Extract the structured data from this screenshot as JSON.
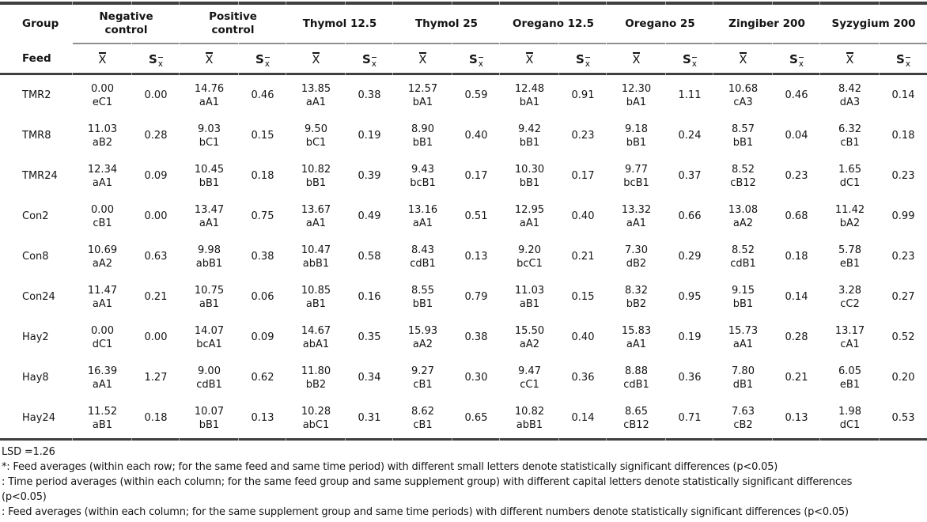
{
  "table": {
    "corner": {
      "top": "Group",
      "bottom": "Feed"
    },
    "symbols": {
      "mean": "X̄",
      "mean_base": "X",
      "se": "Sx̄",
      "se_main": "S",
      "se_sub": "x"
    },
    "treatments": [
      "Negative\ncontrol",
      "Positive\ncontrol",
      "Thymol 12.5",
      "Thymol 25",
      "Oregano 12.5",
      "Oregano 25",
      "Zingiber 200",
      "Syzygium 200"
    ],
    "rows": [
      {
        "feed": "TMR2",
        "cells": [
          {
            "mean": "0.00",
            "letters": "eC1",
            "se": "0.00"
          },
          {
            "mean": "14.76",
            "letters": "aA1",
            "se": "0.46"
          },
          {
            "mean": "13.85",
            "letters": "aA1",
            "se": "0.38"
          },
          {
            "mean": "12.57",
            "letters": "bA1",
            "se": "0.59"
          },
          {
            "mean": "12.48",
            "letters": "bA1",
            "se": "0.91"
          },
          {
            "mean": "12.30",
            "letters": "bA1",
            "se": "1.11"
          },
          {
            "mean": "10.68",
            "letters": "cA3",
            "se": "0.46"
          },
          {
            "mean": "8.42",
            "letters": "dA3",
            "se": "0.14"
          }
        ]
      },
      {
        "feed": "TMR8",
        "cells": [
          {
            "mean": "11.03",
            "letters": "aB2",
            "se": "0.28"
          },
          {
            "mean": "9.03",
            "letters": "bC1",
            "se": "0.15"
          },
          {
            "mean": "9.50",
            "letters": "bC1",
            "se": "0.19"
          },
          {
            "mean": "8.90",
            "letters": "bB1",
            "se": "0.40"
          },
          {
            "mean": "9.42",
            "letters": "bB1",
            "se": "0.23"
          },
          {
            "mean": "9.18",
            "letters": "bB1",
            "se": "0.24"
          },
          {
            "mean": "8.57",
            "letters": "bB1",
            "se": "0.04"
          },
          {
            "mean": "6.32",
            "letters": "cB1",
            "se": "0.18"
          }
        ]
      },
      {
        "feed": "TMR24",
        "cells": [
          {
            "mean": "12.34",
            "letters": "aA1",
            "se": "0.09"
          },
          {
            "mean": "10.45",
            "letters": "bB1",
            "se": "0.18"
          },
          {
            "mean": "10.82",
            "letters": "bB1",
            "se": "0.39"
          },
          {
            "mean": "9.43",
            "letters": "bcB1",
            "se": "0.17"
          },
          {
            "mean": "10.30",
            "letters": "bB1",
            "se": "0.17"
          },
          {
            "mean": "9.77",
            "letters": "bcB1",
            "se": "0.37"
          },
          {
            "mean": "8.52",
            "letters": "cB12",
            "se": "0.23"
          },
          {
            "mean": "1.65",
            "letters": "dC1",
            "se": "0.23"
          }
        ]
      },
      {
        "feed": "Con2",
        "cells": [
          {
            "mean": "0.00",
            "letters": "cB1",
            "se": "0.00"
          },
          {
            "mean": "13.47",
            "letters": "aA1",
            "se": "0.75"
          },
          {
            "mean": "13.67",
            "letters": "aA1",
            "se": "0.49"
          },
          {
            "mean": "13.16",
            "letters": "aA1",
            "se": "0.51"
          },
          {
            "mean": "12.95",
            "letters": "aA1",
            "se": "0.40"
          },
          {
            "mean": "13.32",
            "letters": "aA1",
            "se": "0.66"
          },
          {
            "mean": "13.08",
            "letters": "aA2",
            "se": "0.68"
          },
          {
            "mean": "11.42",
            "letters": "bA2",
            "se": "0.99"
          }
        ]
      },
      {
        "feed": "Con8",
        "cells": [
          {
            "mean": "10.69",
            "letters": "aA2",
            "se": "0.63"
          },
          {
            "mean": "9.98",
            "letters": "abB1",
            "se": "0.38"
          },
          {
            "mean": "10.47",
            "letters": "abB1",
            "se": "0.58"
          },
          {
            "mean": "8.43",
            "letters": "cdB1",
            "se": "0.13"
          },
          {
            "mean": "9.20",
            "letters": "bcC1",
            "se": "0.21"
          },
          {
            "mean": "7.30",
            "letters": "dB2",
            "se": "0.29"
          },
          {
            "mean": "8.52",
            "letters": "cdB1",
            "se": "0.18"
          },
          {
            "mean": "5.78",
            "letters": "eB1",
            "se": "0.23"
          }
        ]
      },
      {
        "feed": "Con24",
        "cells": [
          {
            "mean": "11.47",
            "letters": "aA1",
            "se": "0.21"
          },
          {
            "mean": "10.75",
            "letters": "aB1",
            "se": "0.06"
          },
          {
            "mean": "10.85",
            "letters": "aB1",
            "se": "0.16"
          },
          {
            "mean": "8.55",
            "letters": "bB1",
            "se": "0.79"
          },
          {
            "mean": "11.03",
            "letters": "aB1",
            "se": "0.15"
          },
          {
            "mean": "8.32",
            "letters": "bB2",
            "se": "0.95"
          },
          {
            "mean": "9.15",
            "letters": "bB1",
            "se": "0.14"
          },
          {
            "mean": "3.28",
            "letters": "cC2",
            "se": "0.27"
          }
        ]
      },
      {
        "feed": "Hay2",
        "cells": [
          {
            "mean": "0.00",
            "letters": "dC1",
            "se": "0.00"
          },
          {
            "mean": "14.07",
            "letters": "bcA1",
            "se": "0.09"
          },
          {
            "mean": "14.67",
            "letters": "abA1",
            "se": "0.35"
          },
          {
            "mean": "15.93",
            "letters": "aA2",
            "se": "0.38"
          },
          {
            "mean": "15.50",
            "letters": "aA2",
            "se": "0.40"
          },
          {
            "mean": "15.83",
            "letters": "aA1",
            "se": "0.19"
          },
          {
            "mean": "15.73",
            "letters": "aA1",
            "se": "0.28"
          },
          {
            "mean": "13.17",
            "letters": "cA1",
            "se": "0.52"
          }
        ]
      },
      {
        "feed": "Hay8",
        "cells": [
          {
            "mean": "16.39",
            "letters": "aA1",
            "se": "1.27"
          },
          {
            "mean": "9.00",
            "letters": "cdB1",
            "se": "0.62"
          },
          {
            "mean": "11.80",
            "letters": "bB2",
            "se": "0.34"
          },
          {
            "mean": "9.27",
            "letters": "cB1",
            "se": "0.30"
          },
          {
            "mean": "9.47",
            "letters": "cC1",
            "se": "0.36"
          },
          {
            "mean": "8.88",
            "letters": "cdB1",
            "se": "0.36"
          },
          {
            "mean": "7.80",
            "letters": "dB1",
            "se": "0.21"
          },
          {
            "mean": "6.05",
            "letters": "eB1",
            "se": "0.20"
          }
        ]
      },
      {
        "feed": "Hay24",
        "cells": [
          {
            "mean": "11.52",
            "letters": "aB1",
            "se": "0.18"
          },
          {
            "mean": "10.07",
            "letters": "bB1",
            "se": "0.13"
          },
          {
            "mean": "10.28",
            "letters": "abC1",
            "se": "0.31"
          },
          {
            "mean": "8.62",
            "letters": "cB1",
            "se": "0.65"
          },
          {
            "mean": "10.82",
            "letters": "abB1",
            "se": "0.14"
          },
          {
            "mean": "8.65",
            "letters": "cB12",
            "se": "0.71"
          },
          {
            "mean": "7.63",
            "letters": "cB2",
            "se": "0.13"
          },
          {
            "mean": "1.98",
            "letters": "dC1",
            "se": "0.53"
          }
        ]
      }
    ]
  },
  "footer": {
    "lsd": "LSD =1.26",
    "notes": [
      {
        "lines": [
          "*: Feed averages (within each row; for the same feed and same time period) with different small letters denote statistically significant differences (p<0.05)"
        ]
      },
      {
        "lines": [
          ": Time period averages (within each column; for the same feed group and same supplement group) with different capital letters denote statistically significant differences",
          "(p<0.05)"
        ]
      },
      {
        "lines": [
          ": Feed averages (within each column; for the same supplement group and same time periods) with different numbers denote statistically significant differences (p<0.05)"
        ]
      }
    ]
  }
}
